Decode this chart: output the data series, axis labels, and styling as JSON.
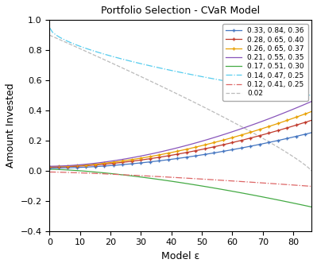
{
  "title": "Portfolio Selection - CVaR Model",
  "xlabel": "Model ε",
  "ylabel": "Amount Invested",
  "xlim": [
    0,
    86
  ],
  "ylim": [
    -0.4,
    1.0
  ],
  "xticks": [
    0,
    10,
    20,
    30,
    40,
    50,
    60,
    70,
    80
  ],
  "yticks": [
    -0.4,
    -0.2,
    0.0,
    0.2,
    0.4,
    0.6,
    0.8,
    1.0
  ],
  "n_points": 86,
  "bg_color": "#f0f0f0",
  "series": [
    {
      "label": "0.33, 0.84, 0.36",
      "color": "#4475C0",
      "linestyle": "-",
      "marker": "+",
      "type": "risky_blue"
    },
    {
      "label": "0.28, 0.65, 0.40",
      "color": "#C0392B",
      "linestyle": "-",
      "marker": "+",
      "type": "risky_red"
    },
    {
      "label": "0.26, 0.65, 0.37",
      "color": "#E8A000",
      "linestyle": "-",
      "marker": "+",
      "type": "risky_orange"
    },
    {
      "label": "0.21, 0.55, 0.35",
      "color": "#8855BB",
      "linestyle": "-",
      "marker": null,
      "type": "risky_purple"
    },
    {
      "label": "0.17, 0.51, 0.30",
      "color": "#44AA44",
      "linestyle": "-",
      "marker": null,
      "type": "risky_green"
    },
    {
      "label": "0.14, 0.47, 0.25",
      "color": "#55CCEE",
      "linestyle": "-.",
      "marker": null,
      "type": "riskless_cyan"
    },
    {
      "label": "0.12, 0.41, 0.25",
      "color": "#DD6666",
      "linestyle": "-.",
      "marker": null,
      "type": "riskless_pink"
    },
    {
      "label": "0.02",
      "color": "#BBBBBB",
      "linestyle": "--",
      "marker": null,
      "type": "riskfree_gray"
    }
  ]
}
